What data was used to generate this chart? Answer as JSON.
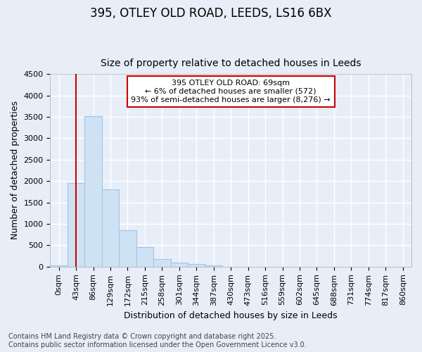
{
  "title_line1": "395, OTLEY OLD ROAD, LEEDS, LS16 6BX",
  "title_line2": "Size of property relative to detached houses in Leeds",
  "xlabel": "Distribution of detached houses by size in Leeds",
  "ylabel": "Number of detached properties",
  "bar_labels": [
    "0sqm",
    "43sqm",
    "86sqm",
    "129sqm",
    "172sqm",
    "215sqm",
    "258sqm",
    "301sqm",
    "344sqm",
    "387sqm",
    "430sqm",
    "473sqm",
    "516sqm",
    "559sqm",
    "602sqm",
    "645sqm",
    "688sqm",
    "731sqm",
    "774sqm",
    "817sqm",
    "860sqm"
  ],
  "bar_values": [
    30,
    1950,
    3520,
    1800,
    860,
    450,
    170,
    100,
    55,
    30,
    0,
    0,
    0,
    0,
    0,
    0,
    0,
    0,
    0,
    0,
    0
  ],
  "bar_color": "#cfe2f3",
  "bar_edgecolor": "#9fc5e8",
  "vline_x": 1,
  "vline_color": "#cc0000",
  "ylim": [
    0,
    4500
  ],
  "yticks": [
    0,
    500,
    1000,
    1500,
    2000,
    2500,
    3000,
    3500,
    4000,
    4500
  ],
  "annotation_text": "395 OTLEY OLD ROAD: 69sqm\n← 6% of detached houses are smaller (572)\n93% of semi-detached houses are larger (8,276) →",
  "annotation_box_facecolor": "white",
  "annotation_box_edgecolor": "#cc0000",
  "footer_line1": "Contains HM Land Registry data © Crown copyright and database right 2025.",
  "footer_line2": "Contains public sector information licensed under the Open Government Licence v3.0.",
  "background_color": "#e8eef8",
  "grid_color": "white",
  "title_fontsize": 12,
  "subtitle_fontsize": 10,
  "tick_fontsize": 8,
  "label_fontsize": 9,
  "footer_fontsize": 7
}
